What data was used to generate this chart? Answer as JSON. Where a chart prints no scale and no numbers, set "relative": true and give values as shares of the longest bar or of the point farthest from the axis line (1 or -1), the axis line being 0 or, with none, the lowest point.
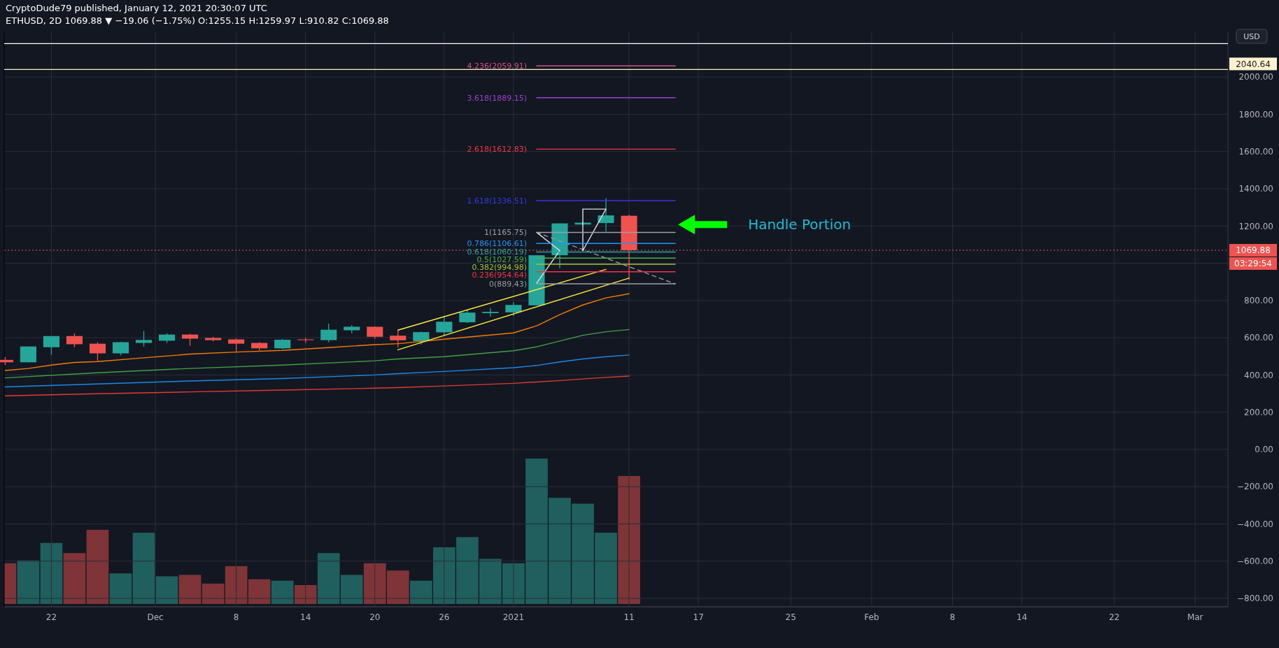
{
  "chart_data": [
    {
      "type": "candlestick",
      "title": "CryptoDude79 published, January 12, 2021 20:30:07 UTC",
      "subtitle": "ETHUSD, 2D  1069.88 ▼ −19.06 (−1.75%)  O:1255.15  H:1259.97  L:910.82  C:1069.88",
      "x": [
        "2020-11-18",
        "2020-11-20",
        "2020-11-22",
        "2020-11-24",
        "2020-11-26",
        "2020-11-28",
        "2020-11-30",
        "2020-12-02",
        "2020-12-04",
        "2020-12-06",
        "2020-12-08",
        "2020-12-10",
        "2020-12-12",
        "2020-12-14",
        "2020-12-16",
        "2020-12-18",
        "2020-12-20",
        "2020-12-22",
        "2020-12-24",
        "2020-12-26",
        "2020-12-28",
        "2020-12-30",
        "2021-01-01",
        "2021-01-03",
        "2021-01-05",
        "2021-01-07",
        "2021-01-09",
        "2021-01-11"
      ],
      "ohlc": [
        [
          481,
          496,
          453,
          468
        ],
        [
          468,
          553,
          468,
          553
        ],
        [
          549,
          609,
          509,
          609
        ],
        [
          609,
          623,
          549,
          565
        ],
        [
          568,
          576,
          476,
          516
        ],
        [
          516,
          578,
          505,
          576
        ],
        [
          572,
          636,
          553,
          588
        ],
        [
          584,
          624,
          572,
          617
        ],
        [
          617,
          621,
          557,
          595
        ],
        [
          599,
          605,
          580,
          587
        ],
        [
          591,
          595,
          527,
          568
        ],
        [
          572,
          576,
          533,
          543
        ],
        [
          543,
          593,
          539,
          589
        ],
        [
          591,
          599,
          572,
          587
        ],
        [
          587,
          676,
          576,
          643
        ],
        [
          640,
          668,
          624,
          659
        ],
        [
          659,
          661,
          595,
          605
        ],
        [
          611,
          641,
          549,
          586
        ],
        [
          582,
          632,
          564,
          630
        ],
        [
          629,
          714,
          614,
          686
        ],
        [
          683,
          747,
          679,
          735
        ],
        [
          732,
          760,
          714,
          739
        ],
        [
          736,
          790,
          717,
          776
        ],
        [
          774,
          1043,
          774,
          1043
        ],
        [
          1043,
          1214,
          973,
          1214
        ],
        [
          1208,
          1225,
          1200,
          1218
        ],
        [
          1216,
          1350,
          1170,
          1257
        ],
        [
          1255.15,
          1259.97,
          910.82,
          1069.88
        ]
      ],
      "series": [
        {
          "type": "line",
          "color": "#f57c00",
          "x": [
            "2020-11-18",
            "2020-11-20",
            "2020-11-22",
            "2020-11-24",
            "2020-11-26",
            "2020-11-30",
            "2020-12-04",
            "2020-12-08",
            "2020-12-12",
            "2020-12-16",
            "2020-12-20",
            "2020-12-22",
            "2020-12-26",
            "2021-01-01",
            "2021-01-03",
            "2021-01-05",
            "2021-01-07",
            "2021-01-09",
            "2021-01-11"
          ],
          "values": [
            424,
            435,
            453,
            467,
            472,
            492,
            512,
            523,
            532,
            547,
            563,
            568,
            592,
            626,
            664,
            724,
            776,
            814,
            836
          ]
        },
        {
          "type": "line",
          "color": "#43a047",
          "x": [
            "2020-11-18",
            "2020-11-26",
            "2020-12-04",
            "2020-12-12",
            "2020-12-20",
            "2020-12-22",
            "2020-12-26",
            "2021-01-01",
            "2021-01-03",
            "2021-01-05",
            "2021-01-07",
            "2021-01-09",
            "2021-01-11"
          ],
          "values": [
            384,
            412,
            435,
            453,
            476,
            486,
            498,
            530,
            551,
            582,
            613,
            632,
            644
          ]
        },
        {
          "type": "line",
          "color": "#1e88e5",
          "x": [
            "2020-11-18",
            "2020-11-26",
            "2020-12-04",
            "2020-12-12",
            "2020-12-20",
            "2020-12-22",
            "2020-12-26",
            "2021-01-01",
            "2021-01-03",
            "2021-01-05",
            "2021-01-07",
            "2021-01-09",
            "2021-01-11"
          ],
          "values": [
            336,
            352,
            368,
            381,
            400,
            407,
            419,
            439,
            451,
            470,
            486,
            498,
            507
          ]
        },
        {
          "type": "line",
          "color": "#e53935",
          "x": [
            "2020-11-18",
            "2020-11-26",
            "2020-12-04",
            "2020-12-12",
            "2020-12-20",
            "2020-12-22",
            "2020-12-26",
            "2021-01-01",
            "2021-01-05",
            "2021-01-09",
            "2021-01-11"
          ],
          "values": [
            288,
            299,
            309,
            319,
            329,
            332,
            341,
            355,
            370,
            387,
            394
          ]
        },
        {
          "type": "line",
          "color": "#ffeb3b",
          "x": [
            "2020-12-22",
            "2021-01-09"
          ],
          "values": [
            641,
            967
          ]
        },
        {
          "type": "line",
          "color": "#ffeb3b",
          "x": [
            "2020-12-22",
            "2021-01-11"
          ],
          "values": [
            535,
            920
          ]
        },
        {
          "type": "line",
          "color": "#9598a1",
          "line_style": "dashed",
          "x": [
            "2021-01-03",
            "2021-01-15"
          ],
          "values": [
            1166,
            889
          ]
        },
        {
          "type": "line",
          "color": "#e0e0e0",
          "x": [
            "2021-01-03",
            "2021-01-05"
          ],
          "values": [
            1166,
            1068
          ]
        },
        {
          "type": "line",
          "color": "#e0e0e0",
          "x": [
            "2021-01-03",
            "2021-01-05"
          ],
          "values": [
            893,
            1068
          ]
        },
        {
          "type": "line",
          "color": "#e0e0e0",
          "x": [
            "2021-01-07",
            "2021-01-09"
          ],
          "values": [
            1291,
            1291
          ]
        },
        {
          "type": "line",
          "color": "#e0e0e0",
          "x": [
            "2021-01-07",
            "2021-01-07"
          ],
          "values": [
            1068,
            1291
          ]
        },
        {
          "type": "line",
          "color": "#e0e0e0",
          "x": [
            "2021-01-07",
            "2021-01-09"
          ],
          "values": [
            1068,
            1291
          ]
        },
        {
          "type": "line",
          "name": "4.236(2059.91)",
          "color": "#d4508a",
          "x": [
            "2021-01-03",
            "2021-01-15"
          ],
          "values": [
            2059.91,
            2059.91
          ]
        },
        {
          "type": "line",
          "name": "3.618(1889.15)",
          "color": "#a040d0",
          "x": [
            "2021-01-03",
            "2021-01-15"
          ],
          "values": [
            1889.15,
            1889.15
          ]
        },
        {
          "type": "line",
          "name": "2.618(1612.83)",
          "color": "#f23645",
          "x": [
            "2021-01-03",
            "2021-01-15"
          ],
          "values": [
            1612.83,
            1612.83
          ]
        },
        {
          "type": "line",
          "name": "1.618(1336.51)",
          "color": "#3838e0",
          "x": [
            "2021-01-03",
            "2021-01-15"
          ],
          "values": [
            1336.51,
            1336.51
          ]
        },
        {
          "type": "line",
          "name": "1(1165.75)",
          "color": "#a0a0a0",
          "x": [
            "2021-01-03",
            "2021-01-15"
          ],
          "values": [
            1165.75,
            1165.75
          ]
        },
        {
          "type": "line",
          "name": "0.786(1106.61)",
          "color": "#2196f3",
          "x": [
            "2021-01-03",
            "2021-01-15"
          ],
          "values": [
            1106.61,
            1106.61
          ]
        },
        {
          "type": "line",
          "name": "0.618(1060.19)",
          "color": "#26a69a",
          "x": [
            "2021-01-03",
            "2021-01-15"
          ],
          "values": [
            1060.19,
            1060.19
          ]
        },
        {
          "type": "line",
          "name": "0.5(1027.59)",
          "color": "#4caf50",
          "x": [
            "2021-01-03",
            "2021-01-15"
          ],
          "values": [
            1027.59,
            1027.59
          ]
        },
        {
          "type": "line",
          "name": "0.382(994.98)",
          "color": "#a8c030",
          "x": [
            "2021-01-03",
            "2021-01-15"
          ],
          "values": [
            994.98,
            994.98
          ]
        },
        {
          "type": "line",
          "name": "0.236(954.64)",
          "color": "#f23645",
          "x": [
            "2021-01-03",
            "2021-01-15"
          ],
          "values": [
            954.64,
            954.64
          ]
        },
        {
          "type": "line",
          "name": "0(889.43)",
          "color": "#9e9e9e",
          "x": [
            "2021-01-03",
            "2021-01-15"
          ],
          "values": [
            889.43,
            889.43
          ]
        }
      ],
      "xlim": [
        "2020-11-17T22:00",
        "2021-03-03T20:00"
      ],
      "xticks": [
        {
          "value": "2020-11-22",
          "label": "22"
        },
        {
          "value": "2020-12-01",
          "label": "Dec"
        },
        {
          "value": "2020-12-08",
          "label": "8"
        },
        {
          "value": "2020-12-14",
          "label": "14"
        },
        {
          "value": "2020-12-20",
          "label": "20"
        },
        {
          "value": "2020-12-26",
          "label": "26"
        },
        {
          "value": "2021-01-01",
          "label": "2021"
        },
        {
          "value": "2021-01-11",
          "label": "11"
        },
        {
          "value": "2021-01-17",
          "label": "17"
        },
        {
          "value": "2021-01-25",
          "label": "25"
        },
        {
          "value": "2021-02-01",
          "label": "Feb"
        },
        {
          "value": "2021-02-08",
          "label": "8"
        },
        {
          "value": "2021-02-14",
          "label": "14"
        },
        {
          "value": "2021-02-22",
          "label": "22"
        },
        {
          "value": "2021-03-01",
          "label": "Mar"
        }
      ],
      "ylim": [
        -845,
        2245
      ],
      "yticks": [
        {
          "value": -800,
          "label": "−800.00"
        },
        {
          "value": -600,
          "label": "−600.00"
        },
        {
          "value": -400,
          "label": "−400.00"
        },
        {
          "value": -200,
          "label": "−200.00"
        },
        {
          "value": 0,
          "label": "0.00"
        },
        {
          "value": 200,
          "label": "200.00"
        },
        {
          "value": 400,
          "label": "400.00"
        },
        {
          "value": 600,
          "label": "600.00"
        },
        {
          "value": 800,
          "label": "800.00"
        },
        {
          "value": 1000,
          "label": null
        },
        {
          "value": 1200,
          "label": "1200.00"
        },
        {
          "value": 1400,
          "label": "1400.00"
        },
        {
          "value": 1600,
          "label": "1600.00"
        },
        {
          "value": 1800,
          "label": "1800.00"
        },
        {
          "value": 2000,
          "label": "2000.00"
        }
      ],
      "grid": true,
      "ref_lines": [
        {
          "axis": "y",
          "value": 2180,
          "color": "#ffffff"
        },
        {
          "axis": "y",
          "value": 2040.64,
          "label": "2040.64",
          "color": "#fff2cc"
        },
        {
          "axis": "y",
          "value": 1069.88,
          "label": "1069.88",
          "color": "#ef5350",
          "line_style": "dotted"
        }
      ],
      "annotations": [
        "USD",
        "03:29:54",
        "Handle Portion"
      ]
    },
    {
      "type": "bar",
      "relative": true,
      "tick_labels": false,
      "xlim": [
        "2020-11-17T22:00",
        "2021-03-03T20:00"
      ],
      "x": [
        "2020-11-18",
        "2020-11-20",
        "2020-11-22",
        "2020-11-24",
        "2020-11-26",
        "2020-11-28",
        "2020-11-30",
        "2020-12-02",
        "2020-12-04",
        "2020-12-06",
        "2020-12-08",
        "2020-12-10",
        "2020-12-12",
        "2020-12-14",
        "2020-12-16",
        "2020-12-18",
        "2020-12-20",
        "2020-12-22",
        "2020-12-24",
        "2020-12-26",
        "2020-12-28",
        "2020-12-30",
        "2021-01-01",
        "2021-01-03",
        "2021-01-05",
        "2021-01-07",
        "2021-01-09",
        "2021-01-11"
      ],
      "values": [
        0.28,
        0.3,
        0.42,
        0.35,
        0.51,
        0.21,
        0.49,
        0.19,
        0.2,
        0.14,
        0.26,
        0.17,
        0.16,
        0.13,
        0.35,
        0.2,
        0.28,
        0.23,
        0.16,
        0.39,
        0.46,
        0.31,
        0.28,
        1,
        0.73,
        0.69,
        0.49,
        0.88
      ],
      "colors": [
        "#7f3538",
        "#1f5f5e",
        "#1f5f5e",
        "#7f3538",
        "#7f3538",
        "#1f5f5e",
        "#1f5f5e",
        "#1f5f5e",
        "#7f3538",
        "#7f3538",
        "#7f3538",
        "#7f3538",
        "#1f5f5e",
        "#7f3538",
        "#1f5f5e",
        "#1f5f5e",
        "#7f3538",
        "#7f3538",
        "#1f5f5e",
        "#1f5f5e",
        "#1f5f5e",
        "#1f5f5e",
        "#1f5f5e",
        "#1f5f5e",
        "#1f5f5e",
        "#1f5f5e",
        "#1f5f5e",
        "#7f3538"
      ]
    }
  ]
}
